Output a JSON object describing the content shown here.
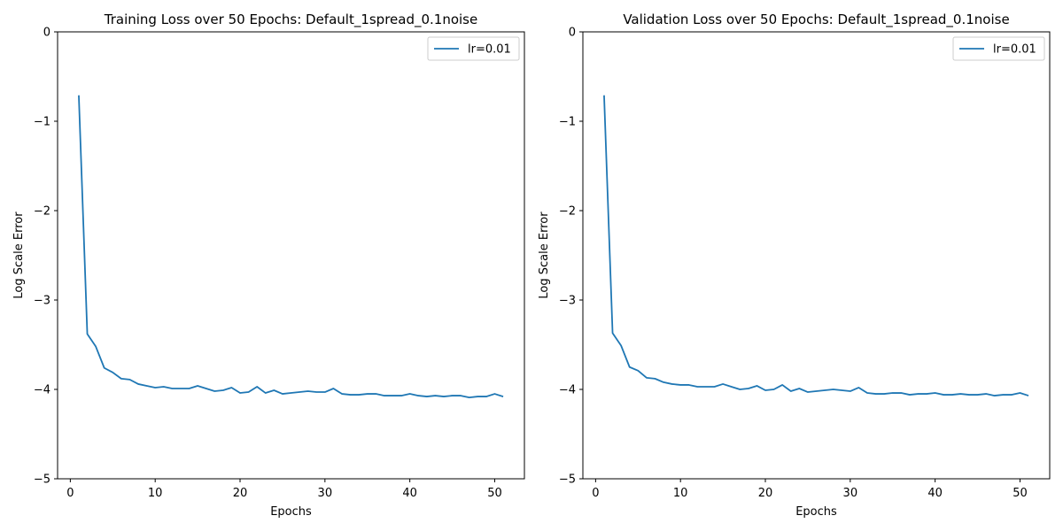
{
  "chart_data": [
    {
      "type": "line",
      "title": "Training Loss over 50 Epochs: Default_1spread_0.1noise",
      "xlabel": "Epochs",
      "ylabel": "Log Scale Error",
      "xlim": [
        -1.5,
        53.5
      ],
      "ylim": [
        -5,
        0
      ],
      "xticks": [
        0,
        10,
        20,
        30,
        40,
        50
      ],
      "yticks": [
        0,
        -1,
        -2,
        -3,
        -4,
        -5
      ],
      "xtick_labels": [
        "0",
        "10",
        "20",
        "30",
        "40",
        "50"
      ],
      "ytick_labels": [
        "0",
        "−1",
        "−2",
        "−3",
        "−4",
        "−5"
      ],
      "grid": false,
      "legend_position": "top-right",
      "series": [
        {
          "name": "lr=0.01",
          "color": "#1f77b4",
          "x": [
            1,
            2,
            3,
            4,
            5,
            6,
            7,
            8,
            9,
            10,
            11,
            12,
            13,
            14,
            15,
            16,
            17,
            18,
            19,
            20,
            21,
            22,
            23,
            24,
            25,
            26,
            27,
            28,
            29,
            30,
            31,
            32,
            33,
            34,
            35,
            36,
            37,
            38,
            39,
            40,
            41,
            42,
            43,
            44,
            45,
            46,
            47,
            48,
            49,
            50,
            51
          ],
          "y": [
            -0.71,
            -3.38,
            -3.52,
            -3.76,
            -3.81,
            -3.88,
            -3.89,
            -3.94,
            -3.96,
            -3.98,
            -3.97,
            -3.99,
            -3.99,
            -3.99,
            -3.96,
            -3.99,
            -4.02,
            -4.01,
            -3.98,
            -4.04,
            -4.03,
            -3.97,
            -4.04,
            -4.01,
            -4.05,
            -4.04,
            -4.03,
            -4.02,
            -4.03,
            -4.03,
            -3.99,
            -4.05,
            -4.06,
            -4.06,
            -4.05,
            -4.05,
            -4.07,
            -4.07,
            -4.07,
            -4.05,
            -4.07,
            -4.08,
            -4.07,
            -4.08,
            -4.07,
            -4.07,
            -4.09,
            -4.08,
            -4.08,
            -4.05,
            -4.08
          ]
        }
      ]
    },
    {
      "type": "line",
      "title": "Validation Loss over 50 Epochs: Default_1spread_0.1noise",
      "xlabel": "Epochs",
      "ylabel": "Log Scale Error",
      "xlim": [
        -1.5,
        53.5
      ],
      "ylim": [
        -5,
        0
      ],
      "xticks": [
        0,
        10,
        20,
        30,
        40,
        50
      ],
      "yticks": [
        0,
        -1,
        -2,
        -3,
        -4,
        -5
      ],
      "xtick_labels": [
        "0",
        "10",
        "20",
        "30",
        "40",
        "50"
      ],
      "ytick_labels": [
        "0",
        "−1",
        "−2",
        "−3",
        "−4",
        "−5"
      ],
      "grid": false,
      "legend_position": "top-right",
      "series": [
        {
          "name": "lr=0.01",
          "color": "#1f77b4",
          "x": [
            1,
            2,
            3,
            4,
            5,
            6,
            7,
            8,
            9,
            10,
            11,
            12,
            13,
            14,
            15,
            16,
            17,
            18,
            19,
            20,
            21,
            22,
            23,
            24,
            25,
            26,
            27,
            28,
            29,
            30,
            31,
            32,
            33,
            34,
            35,
            36,
            37,
            38,
            39,
            40,
            41,
            42,
            43,
            44,
            45,
            46,
            47,
            48,
            49,
            50,
            51
          ],
          "y": [
            -0.71,
            -3.37,
            -3.51,
            -3.75,
            -3.79,
            -3.87,
            -3.88,
            -3.92,
            -3.94,
            -3.95,
            -3.95,
            -3.97,
            -3.97,
            -3.97,
            -3.94,
            -3.97,
            -4.0,
            -3.99,
            -3.96,
            -4.01,
            -4.0,
            -3.95,
            -4.02,
            -3.99,
            -4.03,
            -4.02,
            -4.01,
            -4.0,
            -4.01,
            -4.02,
            -3.98,
            -4.04,
            -4.05,
            -4.05,
            -4.04,
            -4.04,
            -4.06,
            -4.05,
            -4.05,
            -4.04,
            -4.06,
            -4.06,
            -4.05,
            -4.06,
            -4.06,
            -4.05,
            -4.07,
            -4.06,
            -4.06,
            -4.04,
            -4.07
          ]
        }
      ]
    }
  ]
}
